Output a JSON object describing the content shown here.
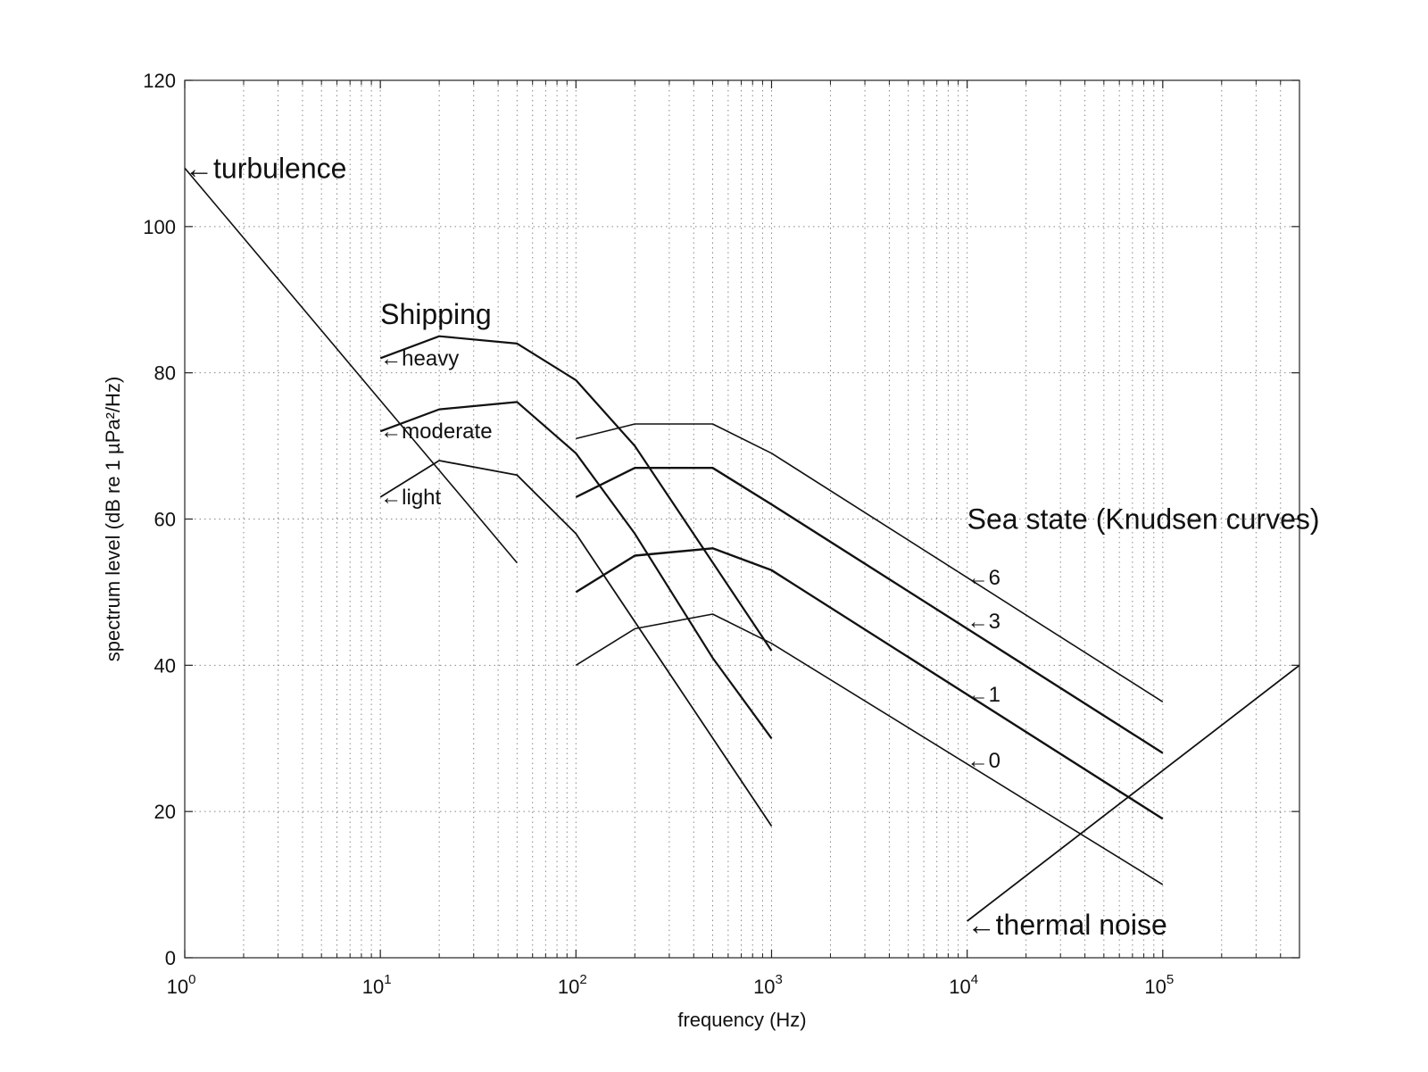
{
  "chart_data": {
    "type": "line",
    "title": "",
    "xlabel": "frequency (Hz)",
    "ylabel": "spectrum level (dB re 1 µPa²/Hz)",
    "xscale": "log",
    "xlim": [
      1,
      500000
    ],
    "ylim": [
      0,
      120
    ],
    "grid": true,
    "x_tick_labels": [
      "10^0",
      "10^1",
      "10^2",
      "10^3",
      "10^4",
      "10^5"
    ],
    "y_tick_labels": [
      "0",
      "20",
      "40",
      "60",
      "80",
      "100",
      "120"
    ],
    "series": [
      {
        "name": "turbulence",
        "x": [
          1,
          50
        ],
        "y": [
          108,
          54
        ],
        "width": 1.6
      },
      {
        "name": "heavy",
        "x": [
          10,
          20,
          50,
          100,
          200,
          1000
        ],
        "y": [
          82,
          85,
          84,
          79,
          70,
          42
        ],
        "width": 2.2
      },
      {
        "name": "moderate",
        "x": [
          10,
          20,
          50,
          100,
          200,
          500,
          1000
        ],
        "y": [
          72,
          75,
          76,
          69,
          58,
          41,
          30
        ],
        "width": 2.2
      },
      {
        "name": "light",
        "x": [
          10,
          20,
          50,
          100,
          1000
        ],
        "y": [
          63,
          68,
          66,
          58,
          18
        ],
        "width": 1.8
      },
      {
        "name": "6",
        "x": [
          100,
          200,
          500,
          1000,
          100000
        ],
        "y": [
          71,
          73,
          73,
          69,
          35
        ],
        "width": 1.6
      },
      {
        "name": "3",
        "x": [
          100,
          200,
          500,
          1000,
          100000
        ],
        "y": [
          63,
          67,
          67,
          62,
          28
        ],
        "width": 2.4
      },
      {
        "name": "1",
        "x": [
          100,
          200,
          500,
          1000,
          100000
        ],
        "y": [
          50,
          55,
          56,
          53,
          19
        ],
        "width": 2.4
      },
      {
        "name": "0",
        "x": [
          100,
          200,
          500,
          1000,
          100000
        ],
        "y": [
          40,
          45,
          47,
          43,
          10
        ],
        "width": 1.6
      },
      {
        "name": "thermal noise",
        "x": [
          10000,
          500000
        ],
        "y": [
          5,
          40
        ],
        "width": 1.8
      }
    ],
    "annotations": [
      {
        "text": "←turbulence",
        "x": 1,
        "y": 108,
        "size": "big"
      },
      {
        "text": "Shipping",
        "x": 10,
        "y": 88,
        "size": "big"
      },
      {
        "text": "←heavy",
        "x": 10,
        "y": 82,
        "size": "small"
      },
      {
        "text": "←moderate",
        "x": 10,
        "y": 72,
        "size": "small"
      },
      {
        "text": "←light",
        "x": 10,
        "y": 63,
        "size": "small"
      },
      {
        "text": "Sea state (Knudsen curves)",
        "x": 10000,
        "y": 60,
        "size": "big"
      },
      {
        "text": "←6",
        "x": 10000,
        "y": 52,
        "size": "small"
      },
      {
        "text": "←3",
        "x": 10000,
        "y": 46,
        "size": "small"
      },
      {
        "text": "←1",
        "x": 10000,
        "y": 36,
        "size": "small"
      },
      {
        "text": "←0",
        "x": 10000,
        "y": 27,
        "size": "small"
      },
      {
        "text": "←thermal noise",
        "x": 10000,
        "y": 4.5,
        "size": "big"
      }
    ]
  }
}
